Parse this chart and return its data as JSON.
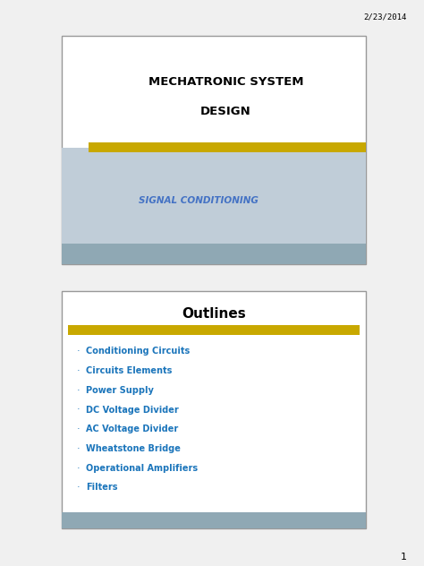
{
  "date_text": "2/23/2014",
  "page_number": "1",
  "slide1": {
    "title_line1": "MECHATRONIC SYSTEM",
    "title_line2": "DESIGN",
    "title_color": "#000000",
    "title_fontsize": 9.5,
    "subtitle": "SIGNAL CONDITIONING",
    "subtitle_color": "#4472C4",
    "subtitle_fontsize": 7.5,
    "gold_bar_color": "#C8A800",
    "footer_bar_color": "#8FA8B4",
    "bg_color_bottom": "#C0CDD8",
    "box_border_color": "#999999"
  },
  "slide2": {
    "title": "Outlines",
    "title_color": "#000000",
    "title_fontsize": 11,
    "gold_bar_color": "#C8A800",
    "footer_bar_color": "#8FA8B4",
    "bullet_color": "#1B75BB",
    "bullet_fontsize": 7,
    "bullet_items": [
      "Conditioning Circuits",
      "Circuits Elements",
      "Power Supply",
      "DC Voltage Divider",
      "AC Voltage Divider",
      "Wheatstone Bridge",
      "Operational Amplifiers",
      "Filters"
    ],
    "box_border_color": "#999999"
  },
  "page_bg": "#F0F0F0"
}
